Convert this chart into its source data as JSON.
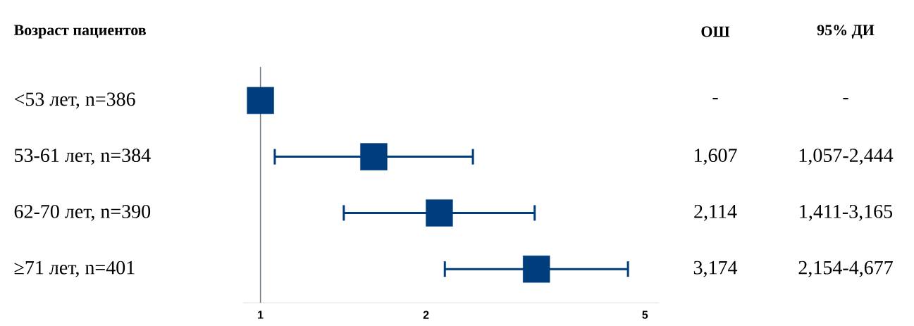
{
  "chart_data": {
    "type": "scatter",
    "orientation": "horizontal",
    "title": "Возраст пациентов",
    "categories": [
      "<53 лет, n=386",
      "53-61 лет, n=384",
      "62-70 лет, n=390",
      "≥71 лет, n=401"
    ],
    "values": [
      1,
      1.607,
      2.114,
      3.174
    ],
    "errors": [
      null,
      [
        1.057,
        2.444
      ],
      [
        1.411,
        3.165
      ],
      [
        2.154,
        4.677
      ]
    ],
    "annotations": [
      "ОШ",
      "95% ДИ",
      "-",
      "-",
      "1,607",
      "1,057-2,444",
      "2,114",
      "1,411-3,165",
      "3,174",
      "2,154-4,677"
    ],
    "color": "#003d7c",
    "marker": "square",
    "log": "x",
    "xlim": [
      0.93,
      5.3
    ],
    "xticks": [
      1,
      2,
      5
    ],
    "ref_lines": [
      {
        "axis": "x",
        "value": 1,
        "color": "#707a80"
      }
    ]
  }
}
